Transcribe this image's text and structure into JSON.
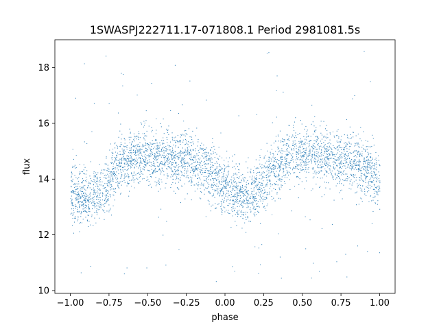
{
  "chart_data": {
    "type": "scatter",
    "title": "1SWASPJ222711.17-071808.1 Period 2981081.5s",
    "xlabel": "phase",
    "ylabel": "flux",
    "xlim": [
      -1.1,
      1.1
    ],
    "ylim": [
      9.9,
      19.0
    ],
    "xticks": [
      -1.0,
      -0.75,
      -0.5,
      -0.25,
      0.0,
      0.25,
      0.5,
      0.75,
      1.0
    ],
    "xtick_labels": [
      "−1.00",
      "−0.75",
      "−0.50",
      "−0.25",
      "0.00",
      "0.25",
      "0.50",
      "0.75",
      "1.00"
    ],
    "yticks": [
      10,
      12,
      14,
      16,
      18
    ],
    "ytick_labels": [
      "10",
      "12",
      "14",
      "16",
      "18"
    ],
    "grid": false,
    "marker_color": "#1f77b4",
    "phase_range": [
      -1.0,
      1.0
    ],
    "trend": {
      "phase": [
        -1.0,
        -0.9,
        -0.8,
        -0.75,
        -0.7,
        -0.6,
        -0.5,
        -0.4,
        -0.3,
        -0.25,
        -0.2,
        -0.1,
        -0.05,
        0.0,
        0.1,
        0.2,
        0.25,
        0.3,
        0.4,
        0.5,
        0.6,
        0.7,
        0.75,
        0.8,
        0.9,
        0.95,
        1.0
      ],
      "flux": [
        13.5,
        13.3,
        13.5,
        13.9,
        14.5,
        14.8,
        14.8,
        14.8,
        14.7,
        14.7,
        14.5,
        14.3,
        14.0,
        13.6,
        13.3,
        13.5,
        13.9,
        14.4,
        14.8,
        14.8,
        14.8,
        14.7,
        14.7,
        14.6,
        14.4,
        14.2,
        13.8
      ]
    },
    "scatter_sigma": 0.5,
    "outlier_range": [
      10.3,
      18.6
    ]
  }
}
